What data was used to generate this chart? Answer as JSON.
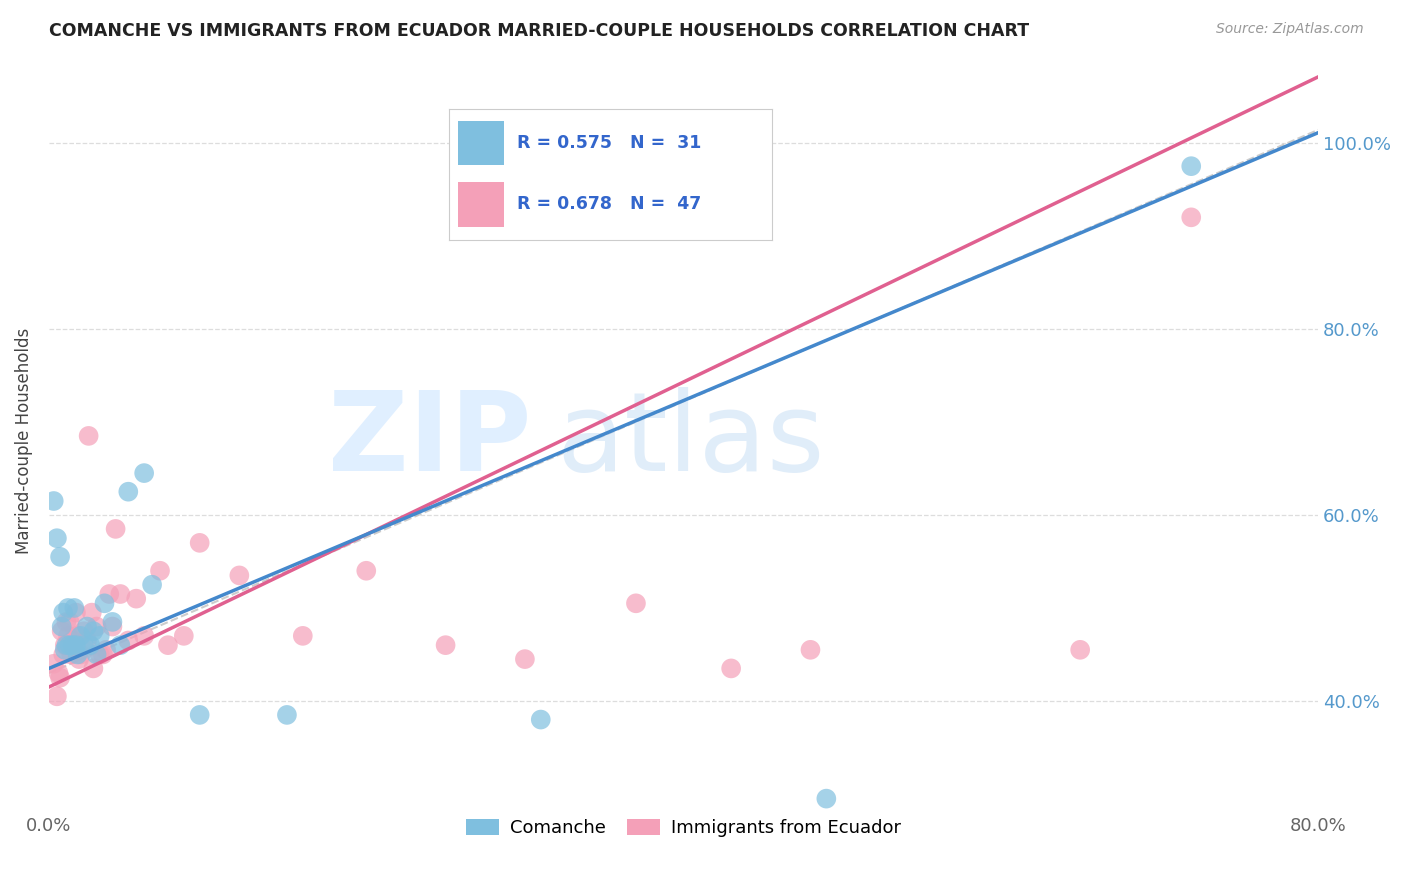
{
  "title": "COMANCHE VS IMMIGRANTS FROM ECUADOR MARRIED-COUPLE HOUSEHOLDS CORRELATION CHART",
  "source": "Source: ZipAtlas.com",
  "ylabel": "Married-couple Households",
  "xlim": [
    0.0,
    0.8
  ],
  "ylim": [
    0.28,
    1.08
  ],
  "ytick_positions": [
    0.4,
    0.6,
    0.8,
    1.0
  ],
  "xtick_positions": [
    0.0,
    0.2,
    0.4,
    0.6,
    0.8
  ],
  "ytick_labels": [
    "40.0%",
    "60.0%",
    "80.0%",
    "100.0%"
  ],
  "xtick_labels": [
    "0.0%",
    "",
    "",
    "",
    "80.0%"
  ],
  "legend_r1": "R = 0.575",
  "legend_n1": "N =  31",
  "legend_r2": "R = 0.678",
  "legend_n2": "N =  47",
  "color_blue": "#7fbfdf",
  "color_pink": "#f4a0b8",
  "color_blue_line": "#4488cc",
  "color_pink_line": "#e06090",
  "color_gray_line": "#c0c0c0",
  "blue_line_intercept": 0.435,
  "blue_line_slope": 0.72,
  "pink_line_intercept": 0.415,
  "pink_line_slope": 0.82,
  "gray_line_intercept": 0.43,
  "gray_line_slope": 0.73,
  "background_color": "#ffffff",
  "grid_color": "#dddddd",
  "comanche_x": [
    0.003,
    0.005,
    0.007,
    0.008,
    0.009,
    0.01,
    0.011,
    0.012,
    0.013,
    0.015,
    0.016,
    0.017,
    0.018,
    0.02,
    0.022,
    0.024,
    0.026,
    0.028,
    0.03,
    0.032,
    0.035,
    0.04,
    0.045,
    0.05,
    0.06,
    0.065,
    0.095,
    0.15,
    0.31,
    0.49,
    0.72
  ],
  "comanche_y": [
    0.615,
    0.575,
    0.555,
    0.48,
    0.495,
    0.455,
    0.46,
    0.5,
    0.46,
    0.46,
    0.5,
    0.46,
    0.45,
    0.47,
    0.46,
    0.48,
    0.46,
    0.475,
    0.45,
    0.47,
    0.505,
    0.485,
    0.46,
    0.625,
    0.645,
    0.525,
    0.385,
    0.385,
    0.38,
    0.295,
    0.975
  ],
  "ecuador_x": [
    0.003,
    0.005,
    0.006,
    0.007,
    0.008,
    0.009,
    0.01,
    0.011,
    0.012,
    0.013,
    0.014,
    0.015,
    0.016,
    0.017,
    0.018,
    0.019,
    0.02,
    0.022,
    0.024,
    0.025,
    0.027,
    0.028,
    0.03,
    0.032,
    0.034,
    0.036,
    0.038,
    0.04,
    0.042,
    0.045,
    0.05,
    0.055,
    0.06,
    0.07,
    0.075,
    0.085,
    0.095,
    0.12,
    0.16,
    0.2,
    0.25,
    0.3,
    0.37,
    0.43,
    0.48,
    0.65,
    0.72
  ],
  "ecuador_y": [
    0.44,
    0.405,
    0.43,
    0.425,
    0.475,
    0.45,
    0.46,
    0.485,
    0.47,
    0.485,
    0.45,
    0.465,
    0.46,
    0.495,
    0.47,
    0.445,
    0.45,
    0.475,
    0.465,
    0.685,
    0.495,
    0.435,
    0.48,
    0.45,
    0.45,
    0.455,
    0.515,
    0.48,
    0.585,
    0.515,
    0.465,
    0.51,
    0.47,
    0.54,
    0.46,
    0.47,
    0.57,
    0.535,
    0.47,
    0.54,
    0.46,
    0.445,
    0.505,
    0.435,
    0.455,
    0.455,
    0.92
  ]
}
